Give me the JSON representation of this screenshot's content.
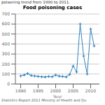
{
  "chart_data": {
    "type": "line",
    "title": "Food poisoning cases",
    "subtitle": "poisoning trend from 1990 to 2011.",
    "annotations": [
      "Statistics Report 2011 Ministry of Health and Qu"
    ],
    "x_label": "Year",
    "x": [
      1990,
      1991,
      1992,
      1993,
      1994,
      1995,
      1996,
      1997,
      1998,
      1999,
      2000,
      2001,
      2002,
      2003,
      2004,
      2005,
      2006,
      2007,
      2008,
      2009,
      2010,
      2011
    ],
    "values": [
      80,
      90,
      105,
      85,
      80,
      75,
      72,
      70,
      75,
      72,
      90,
      78,
      75,
      70,
      95,
      180,
      120,
      600,
      280,
      100,
      550,
      380
    ],
    "xlim": [
      1988.5,
      2012.5
    ],
    "xticks": [
      1990,
      1995,
      2000,
      2005,
      2010
    ],
    "ylim": [
      0,
      700
    ],
    "yticks": [
      0,
      100,
      200,
      300,
      400,
      500,
      600,
      700
    ],
    "grid": true,
    "marker": "plus"
  }
}
